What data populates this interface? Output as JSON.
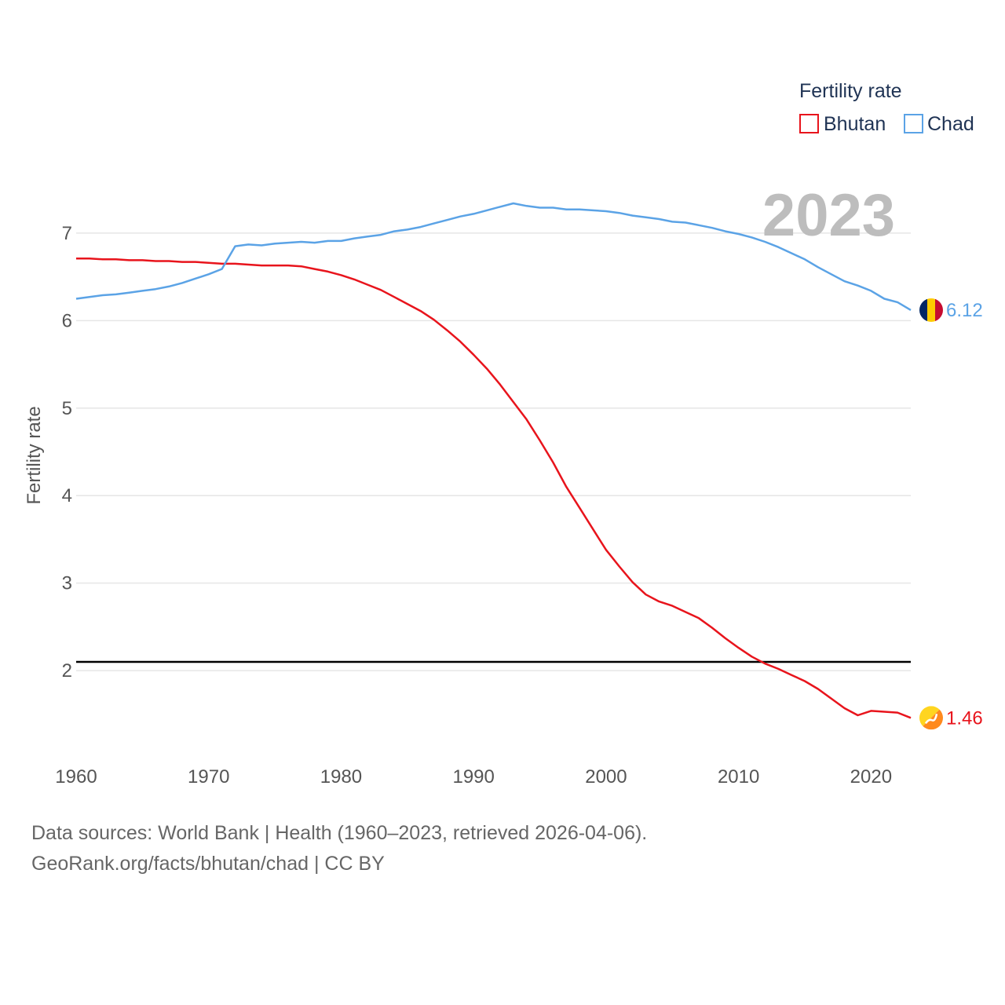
{
  "chart_data": {
    "type": "line",
    "legend_title": "Fertility rate",
    "ylabel": "Fertility rate",
    "xlim": [
      1960,
      2023
    ],
    "ylim": [
      1.05,
      7.6
    ],
    "x_ticks": [
      1960,
      1970,
      1980,
      1990,
      2000,
      2010,
      2020
    ],
    "y_ticks": [
      2,
      3,
      4,
      5,
      6,
      7
    ],
    "current_year": "2023",
    "reference_line": {
      "value": 2.1,
      "color": "#000000"
    },
    "x": [
      1960,
      1961,
      1962,
      1963,
      1964,
      1965,
      1966,
      1967,
      1968,
      1969,
      1970,
      1971,
      1972,
      1973,
      1974,
      1975,
      1976,
      1977,
      1978,
      1979,
      1980,
      1981,
      1982,
      1983,
      1984,
      1985,
      1986,
      1987,
      1988,
      1989,
      1990,
      1991,
      1992,
      1993,
      1994,
      1995,
      1996,
      1997,
      1998,
      1999,
      2000,
      2001,
      2002,
      2003,
      2004,
      2005,
      2006,
      2007,
      2008,
      2009,
      2010,
      2011,
      2012,
      2013,
      2014,
      2015,
      2016,
      2017,
      2018,
      2019,
      2020,
      2021,
      2022,
      2023
    ],
    "series": [
      {
        "name": "Bhutan",
        "color": "#e8141c",
        "end_label": "1.46",
        "flag": "bhutan-flag",
        "values": [
          6.71,
          6.71,
          6.7,
          6.7,
          6.69,
          6.69,
          6.68,
          6.68,
          6.67,
          6.67,
          6.66,
          6.65,
          6.65,
          6.64,
          6.63,
          6.63,
          6.63,
          6.62,
          6.59,
          6.56,
          6.52,
          6.47,
          6.41,
          6.35,
          6.27,
          6.19,
          6.11,
          6.01,
          5.89,
          5.76,
          5.61,
          5.45,
          5.27,
          5.07,
          4.87,
          4.63,
          4.38,
          4.1,
          3.86,
          3.62,
          3.38,
          3.19,
          3.01,
          2.87,
          2.79,
          2.74,
          2.67,
          2.6,
          2.49,
          2.37,
          2.26,
          2.16,
          2.08,
          2.02,
          1.95,
          1.88,
          1.79,
          1.68,
          1.57,
          1.49,
          1.54,
          1.53,
          1.52,
          1.46
        ]
      },
      {
        "name": "Chad",
        "color": "#5ba3e6",
        "end_label": "6.12",
        "flag": "chad-flag",
        "values": [
          6.25,
          6.27,
          6.29,
          6.3,
          6.32,
          6.34,
          6.36,
          6.39,
          6.43,
          6.48,
          6.53,
          6.59,
          6.85,
          6.87,
          6.86,
          6.88,
          6.89,
          6.9,
          6.89,
          6.91,
          6.91,
          6.94,
          6.96,
          6.98,
          7.02,
          7.04,
          7.07,
          7.11,
          7.15,
          7.19,
          7.22,
          7.26,
          7.3,
          7.34,
          7.31,
          7.29,
          7.29,
          7.27,
          7.27,
          7.26,
          7.25,
          7.23,
          7.2,
          7.18,
          7.16,
          7.13,
          7.12,
          7.09,
          7.06,
          7.02,
          6.99,
          6.95,
          6.9,
          6.84,
          6.77,
          6.7,
          6.61,
          6.53,
          6.45,
          6.4,
          6.34,
          6.25,
          6.21,
          6.12
        ]
      }
    ]
  },
  "footer": {
    "sources": "Data sources: World Bank | Health (1960–2023, retrieved 2026-04-06).",
    "attribution": "GeoRank.org/facts/bhutan/chad | CC BY"
  }
}
